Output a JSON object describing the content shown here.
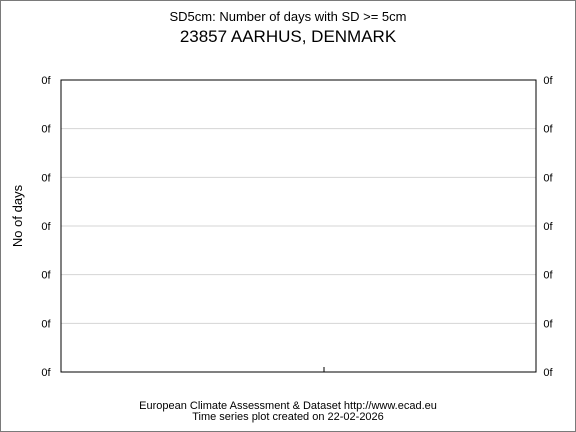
{
  "chart_data": {
    "type": "line",
    "title": "SD5cm: Number of days with SD >= 5cm",
    "subtitle": "23857 AARHUS, DENMARK",
    "ylabel": "No of days",
    "y_tick_labels": [
      "0f",
      "0f",
      "0f",
      "0f",
      "0f",
      "0f",
      "0f"
    ],
    "grid": true,
    "series": []
  },
  "footer": {
    "source": "European Climate Assessment & Dataset  http://www.ecad.eu",
    "created": "Time series plot created on 22-02-2026"
  }
}
